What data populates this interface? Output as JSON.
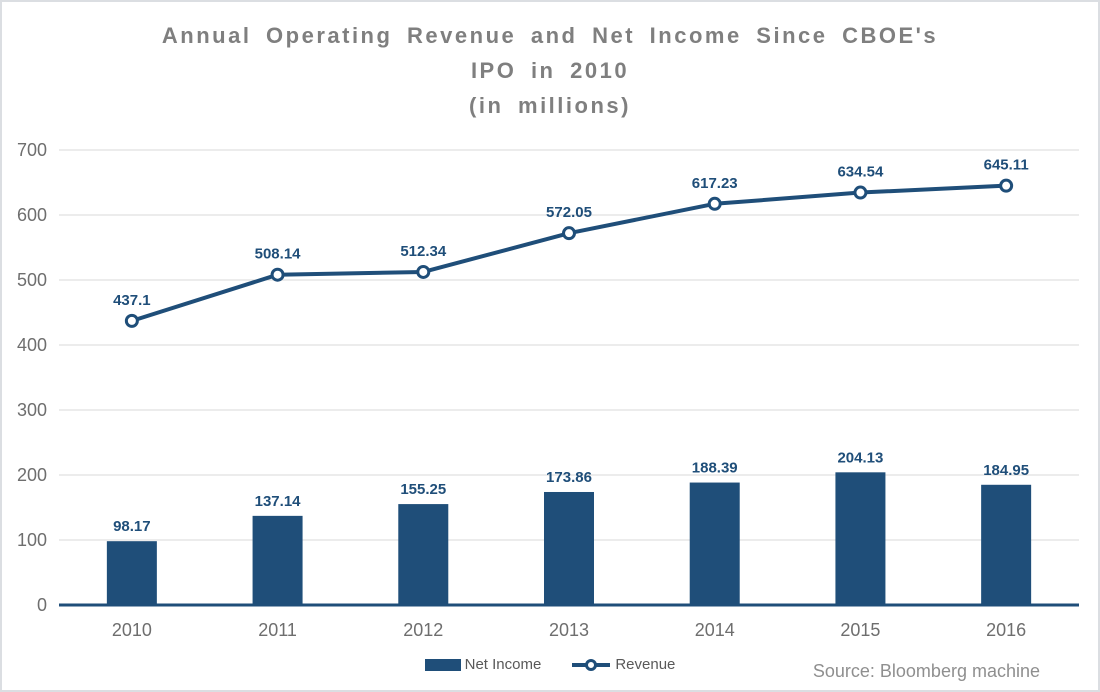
{
  "title_lines": [
    "Annual Operating Revenue and Net Income Since CBOE's",
    "IPO in 2010",
    "(in millions)"
  ],
  "legend": {
    "items": [
      {
        "label": "Net Income",
        "swatch": "bar-swatch-icon"
      },
      {
        "label": "Revenue",
        "swatch": "line-marker-swatch-icon"
      }
    ]
  },
  "source_note": "Source: Bloomberg machine",
  "colors": {
    "navy": "#1F4E79",
    "grid": "#D9D9D9",
    "axis_text": "#6E6E6E",
    "title_text": "#7F7F7F",
    "legend_text": "#595959",
    "source_text": "#8F8F8F",
    "border": "#DBDEE2",
    "background": "#FFFFFF"
  },
  "chart_data": {
    "type": "bar",
    "subtype": "combo-bar-line",
    "title": "Annual Operating Revenue and Net Income Since CBOE's IPO in 2010 (in millions)",
    "categories": [
      "2010",
      "2011",
      "2012",
      "2013",
      "2014",
      "2015",
      "2016"
    ],
    "series": [
      {
        "name": "Net Income",
        "type": "bar",
        "values": [
          98.17,
          137.14,
          155.25,
          173.86,
          188.39,
          204.13,
          184.95
        ]
      },
      {
        "name": "Revenue",
        "type": "line",
        "values": [
          437.1,
          508.14,
          512.34,
          572.05,
          617.23,
          634.54,
          645.11
        ]
      }
    ],
    "xlabel": "",
    "ylabel": "",
    "ylim": [
      0,
      700
    ],
    "ytick_step": 100,
    "grid": true,
    "data_labels": true,
    "legend_position": "bottom"
  }
}
